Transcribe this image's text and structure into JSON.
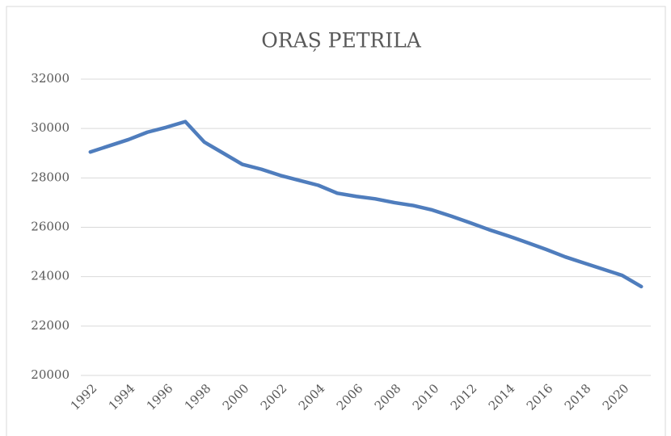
{
  "chart_data": {
    "type": "line",
    "title": "ORAȘ PETRILA",
    "x": [
      1992,
      1993,
      1994,
      1995,
      1996,
      1997,
      1998,
      1999,
      2000,
      2001,
      2002,
      2003,
      2004,
      2005,
      2006,
      2007,
      2008,
      2009,
      2010,
      2011,
      2012,
      2013,
      2014,
      2015,
      2016,
      2017,
      2018,
      2019,
      2020,
      2021
    ],
    "series": [
      {
        "name": "ORAȘ PETRILA",
        "color": "#4f7dbd",
        "values": [
          29050,
          29300,
          29550,
          29850,
          30050,
          30280,
          29450,
          29000,
          28550,
          28350,
          28100,
          27900,
          27700,
          27380,
          27250,
          27150,
          27000,
          26880,
          26700,
          26450,
          26180,
          25900,
          25650,
          25380,
          25100,
          24800,
          24550,
          24300,
          24050,
          23600
        ]
      }
    ],
    "xlim": [
      1991.5,
      2021.5
    ],
    "xticks": [
      1992,
      1994,
      1996,
      1998,
      2000,
      2002,
      2004,
      2006,
      2008,
      2010,
      2012,
      2014,
      2016,
      2018,
      2020
    ],
    "ylim": [
      20000,
      32000
    ],
    "yticks": [
      20000,
      22000,
      24000,
      26000,
      28000,
      30000,
      32000
    ],
    "grid": true
  }
}
